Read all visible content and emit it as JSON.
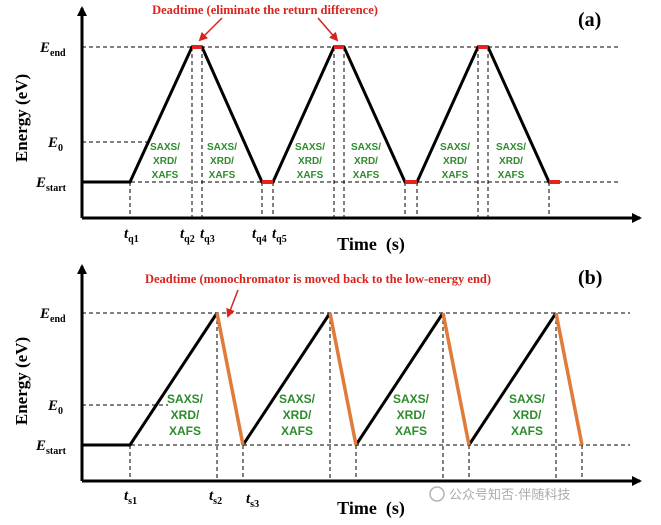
{
  "panel_a": {
    "label": "(a)",
    "deadtime_note": "Deadtime (eliminate the return difference)",
    "y_axis_title": "Energy (eV)",
    "x_axis_title": "Time  (s)",
    "y_labels": {
      "end": {
        "main": "E",
        "sub": "end"
      },
      "e0": {
        "main": "E",
        "sub": "0"
      },
      "start": {
        "main": "E",
        "sub": "start"
      }
    },
    "time_labels": [
      {
        "main": "t",
        "sub": "q1"
      },
      {
        "main": "t",
        "sub": "q2"
      },
      {
        "main": "t",
        "sub": "q3"
      },
      {
        "main": "t",
        "sub": "q4"
      },
      {
        "main": "t",
        "sub": "q5"
      }
    ],
    "segment_label": [
      "SAXS/",
      "XRD/",
      "XAFS"
    ]
  },
  "panel_b": {
    "label": "(b)",
    "deadtime_note": "Deadtime (monochromator is moved back to the low-energy end)",
    "y_axis_title": "Energy (eV)",
    "x_axis_title": "Time  (s)",
    "y_labels": {
      "end": {
        "main": "E",
        "sub": "end"
      },
      "e0": {
        "main": "E",
        "sub": "0"
      },
      "start": {
        "main": "E",
        "sub": "start"
      }
    },
    "time_labels": [
      {
        "main": "t",
        "sub": "s1"
      },
      {
        "main": "t",
        "sub": "s2"
      },
      {
        "main": "t",
        "sub": "s3"
      }
    ],
    "segment_label": [
      "SAXS/",
      "XRD/",
      "XAFS"
    ]
  },
  "watermark": "公众号知否·伴随科技",
  "colors": {
    "line": "#000000",
    "deadtime": "#e8201f",
    "return_ramp": "#e07b39",
    "segment_text": "#2e8b2e",
    "note_text": "#d9231d"
  }
}
